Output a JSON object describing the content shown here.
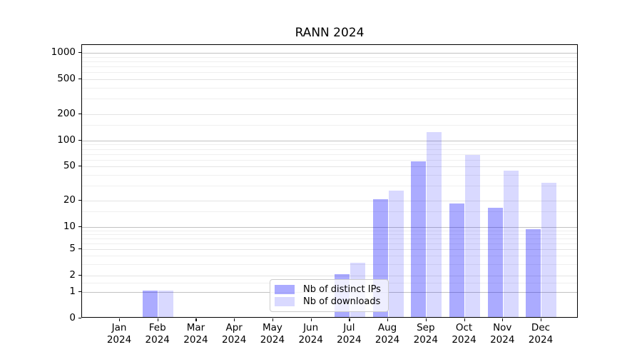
{
  "chart_data": {
    "type": "bar",
    "title": "RANN 2024",
    "categories": [
      "Jan",
      "Feb",
      "Mar",
      "Apr",
      "May",
      "Jun",
      "Jul",
      "Aug",
      "Sep",
      "Oct",
      "Nov",
      "Dec"
    ],
    "x_tick_year": "2024",
    "series": [
      {
        "name": "Nb of distinct IPs",
        "color": "rgba(0,0,255,0.33)",
        "values": [
          0,
          1,
          0,
          0,
          0,
          0,
          2,
          20,
          55,
          18,
          16,
          9
        ]
      },
      {
        "name": "Nb of downloads",
        "color": "rgba(0,0,255,0.15)",
        "values": [
          0,
          1,
          0,
          0,
          0,
          0,
          3,
          25,
          120,
          65,
          43,
          31
        ]
      }
    ],
    "y_axis": {
      "scale": "symlog",
      "tick_values": [
        0,
        1,
        2,
        5,
        10,
        20,
        50,
        100,
        200,
        500,
        1000
      ],
      "tick_labels": [
        "0",
        "1",
        "2",
        "5",
        "10",
        "20",
        "50",
        "100",
        "200",
        "500",
        "1000"
      ],
      "major_grid_values": [
        1,
        10,
        100,
        1000
      ],
      "minor_grid_values": [
        1.5,
        3,
        4,
        6,
        7,
        8,
        9,
        15,
        30,
        40,
        60,
        70,
        80,
        90,
        150,
        300,
        400,
        600,
        700,
        800,
        900
      ]
    },
    "legend": {
      "position": "lower center-left",
      "entries": [
        "Nb of distinct IPs",
        "Nb of downloads"
      ]
    },
    "grid": true
  },
  "colors": {
    "bar_distinct_ips": "rgba(0,0,255,0.33)",
    "bar_downloads": "rgba(0,0,255,0.15)",
    "grid_major": "#c2c2c2",
    "grid_minor": "#efefef",
    "axis_line": "#000000",
    "legend_border": "#cccccc"
  }
}
